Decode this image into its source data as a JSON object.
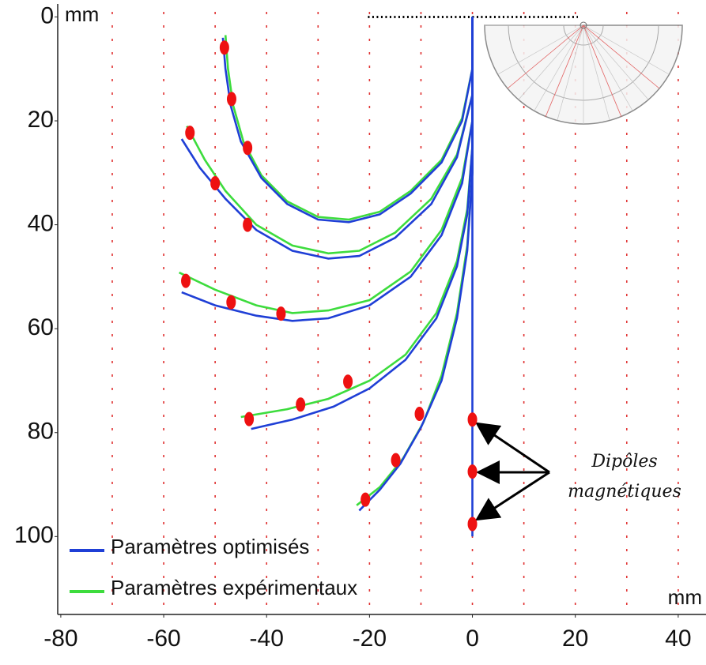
{
  "chart_data": {
    "type": "line",
    "xlabel": "mm",
    "ylabel": "mm",
    "xlim": [
      -80.6,
      45.4
    ],
    "ylim": [
      -2.5,
      115
    ],
    "y_inverted": true,
    "xticks": [
      -80,
      -60,
      -40,
      -20,
      0,
      20,
      40
    ],
    "yticks": [
      0,
      20,
      40,
      60,
      80,
      100
    ],
    "xgrid": [
      -70,
      -60,
      -50,
      -40,
      -30,
      -20,
      -10,
      0,
      10,
      20,
      30,
      40
    ],
    "grid_color": "#e03030",
    "series": [
      {
        "name": "Paramètres optimisés",
        "color": "#1f3fd6",
        "curves": [
          {
            "x": [
              0,
              0,
              -2,
              -6,
              -12,
              -18,
              -24,
              -30,
              -36,
              -41,
              -45,
              -47,
              -48,
              -48.5
            ],
            "y": [
              0,
              10,
              20,
              28,
              34,
              38,
              39.5,
              39,
              36,
              31,
              24,
              17,
              10,
              4
            ]
          },
          {
            "x": [
              0,
              0,
              -3,
              -8,
              -15,
              -22,
              -28,
              -35,
              -42,
              -48,
              -53,
              -56.5
            ],
            "y": [
              0,
              15,
              27,
              36,
              42.5,
              46,
              46.5,
              45,
              41,
              35,
              29,
              23.5
            ]
          },
          {
            "x": [
              0,
              0,
              -2,
              -6,
              -12,
              -20,
              -28,
              -35,
              -42,
              -50,
              -56.5
            ],
            "y": [
              0,
              20,
              32,
              42,
              50,
              55.5,
              58,
              58.5,
              57.5,
              55.5,
              53
            ]
          },
          {
            "x": [
              0,
              0,
              -1,
              -3,
              -7,
              -13,
              -20,
              -27,
              -35,
              -43
            ],
            "y": [
              0,
              25,
              38,
              48,
              58,
              66,
              71.5,
              75,
              77.5,
              79.3
            ]
          },
          {
            "x": [
              0,
              0,
              -1,
              -3,
              -6,
              -10,
              -14,
              -18,
              -22
            ],
            "y": [
              0,
              30,
              45,
              58,
              70,
              79,
              86,
              91,
              95
            ]
          },
          {
            "x": [
              0,
              0
            ],
            "y": [
              0,
              100
            ]
          }
        ]
      },
      {
        "name": "Paramètres expérimentaux",
        "color": "#3ddc3d",
        "curves": [
          {
            "x": [
              0,
              0,
              -2,
              -6,
              -12,
              -18,
              -24,
              -30,
              -36,
              -41,
              -44.5,
              -46.5,
              -47.5,
              -48
            ],
            "y": [
              0,
              10,
              19.5,
              27.5,
              33.5,
              37.5,
              39,
              38.5,
              35.5,
              30.5,
              24,
              17,
              10,
              3.5
            ]
          },
          {
            "x": [
              0,
              0,
              -3,
              -8,
              -15,
              -22,
              -28,
              -35,
              -42,
              -48,
              -52,
              -55.5
            ],
            "y": [
              0,
              15,
              26.5,
              35,
              41.5,
              45,
              45.5,
              44,
              40,
              33.5,
              27.5,
              21
            ]
          },
          {
            "x": [
              0,
              0,
              -2,
              -6,
              -12,
              -20,
              -28,
              -35,
              -42,
              -50,
              -57
            ],
            "y": [
              0,
              20,
              31,
              41,
              49,
              54.5,
              56.5,
              57,
              55.5,
              52.5,
              49.2
            ]
          },
          {
            "x": [
              0,
              0,
              -1,
              -3,
              -7,
              -13,
              -20,
              -28,
              -36,
              -45
            ],
            "y": [
              0,
              25,
              37,
              47,
              57,
              65,
              70,
              73.5,
              75.5,
              77
            ]
          },
          {
            "x": [
              0,
              0,
              -1,
              -3,
              -6,
              -9.5,
              -13.5,
              -18,
              -22.5
            ],
            "y": [
              0,
              30,
              44,
              57,
              69,
              78,
              85,
              90.5,
              94
            ]
          }
        ]
      }
    ],
    "dipoles": {
      "color": "#ee1111",
      "x": [
        -48.2,
        -46.8,
        -43.7,
        -54.9,
        -50,
        -43.7,
        -55.7,
        -46.9,
        -37.2,
        -24.2,
        -33.4,
        -43.4,
        -10.3,
        -14.9,
        -20.8,
        0,
        0,
        0
      ],
      "y": [
        5.9,
        15.8,
        25.2,
        22.3,
        32,
        40,
        50.8,
        54.9,
        57.1,
        70.2,
        74.6,
        77.4,
        76.4,
        85.3,
        92.9,
        77.5,
        87.5,
        97.6
      ]
    },
    "ruler": {
      "x": [
        -20.3,
        20.5
      ],
      "y": 0
    },
    "annotation": [
      "Dipôles",
      "magnétiques"
    ]
  }
}
